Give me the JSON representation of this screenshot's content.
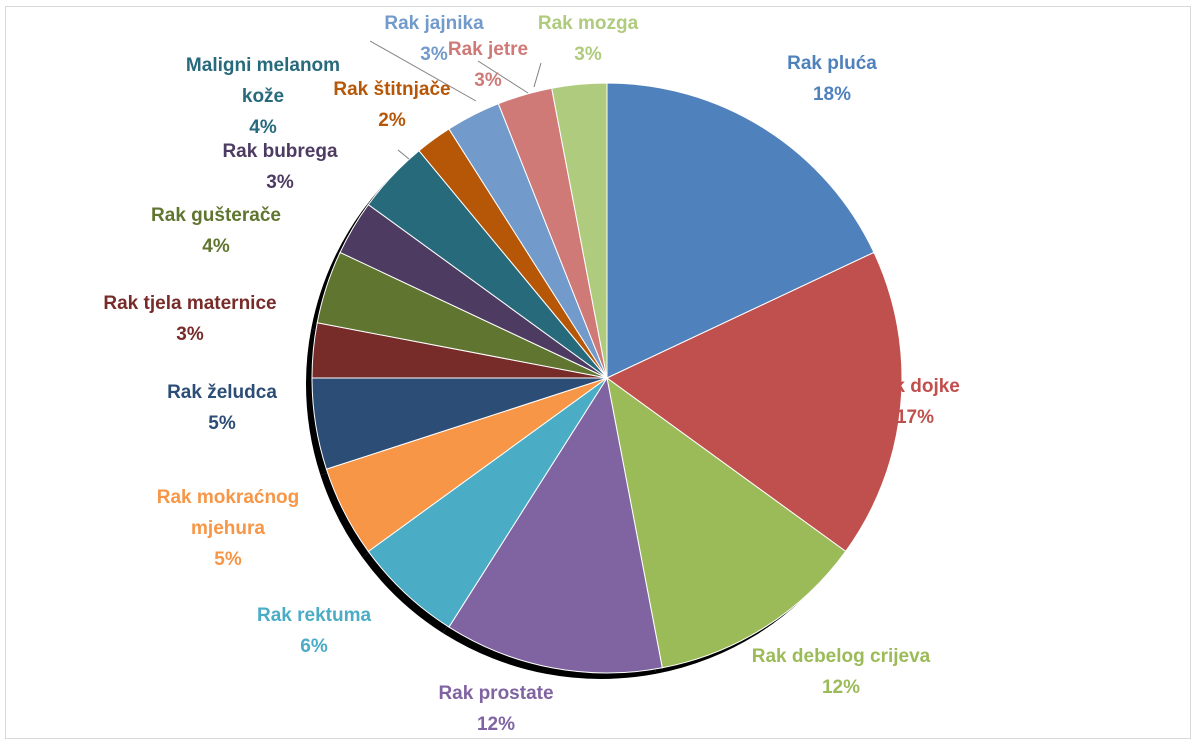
{
  "chart_data": {
    "type": "pie",
    "title": "",
    "series": [
      {
        "name": "Rak pluća",
        "value": 18,
        "label_lines": [
          "Rak pluća"
        ],
        "percent_label": "18%",
        "color": "#4F81BD"
      },
      {
        "name": "Rak dojke",
        "value": 17,
        "label_lines": [
          "Rak dojke"
        ],
        "percent_label": "17%",
        "color": "#C0504D"
      },
      {
        "name": "Rak debelog crijeva",
        "value": 12,
        "label_lines": [
          "Rak debelog crijeva"
        ],
        "percent_label": "12%",
        "color": "#9BBB59"
      },
      {
        "name": "Rak prostate",
        "value": 12,
        "label_lines": [
          "Rak prostate"
        ],
        "percent_label": "12%",
        "color": "#8064A2"
      },
      {
        "name": "Rak rektuma",
        "value": 6,
        "label_lines": [
          "Rak rektuma"
        ],
        "percent_label": "6%",
        "color": "#4BACC6"
      },
      {
        "name": "Rak mokraćnog mjehura",
        "value": 5,
        "label_lines": [
          "Rak mokraćnog",
          "mjehura"
        ],
        "percent_label": "5%",
        "color": "#F79646"
      },
      {
        "name": "Rak želudca",
        "value": 5,
        "label_lines": [
          "Rak želudca"
        ],
        "percent_label": "5%",
        "color": "#2C4D75"
      },
      {
        "name": "Rak tjela maternice",
        "value": 3,
        "label_lines": [
          "Rak tjela maternice"
        ],
        "percent_label": "3%",
        "color": "#772C2A"
      },
      {
        "name": "Rak gušterače",
        "value": 4,
        "label_lines": [
          "Rak gušterače"
        ],
        "percent_label": "4%",
        "color": "#5F7530"
      },
      {
        "name": "Rak bubrega",
        "value": 3,
        "label_lines": [
          "Rak bubrega"
        ],
        "percent_label": "3%",
        "color": "#4D3B62"
      },
      {
        "name": "Maligni melanom kože",
        "value": 4,
        "label_lines": [
          "Maligni melanom",
          "kože"
        ],
        "percent_label": "4%",
        "color": "#276A7C"
      },
      {
        "name": "Rak štitnjače",
        "value": 2,
        "label_lines": [
          "Rak štitnjače"
        ],
        "percent_label": "2%",
        "color": "#B65708"
      },
      {
        "name": "Rak jajnika",
        "value": 3,
        "label_lines": [
          "Rak jajnika"
        ],
        "percent_label": "3%",
        "color": "#729ACA"
      },
      {
        "name": "Rak jetre",
        "value": 3,
        "label_lines": [
          "Rak jetre"
        ],
        "percent_label": "3%",
        "color": "#D07A78"
      },
      {
        "name": "Rak mozga",
        "value": 3,
        "label_lines": [
          "Rak mozga"
        ],
        "percent_label": "3%",
        "color": "#AFCB7D"
      }
    ],
    "start_angle": "12 o'clock",
    "direction": "clockwise",
    "legend": "none",
    "labels": "outside, category name and percentage"
  }
}
